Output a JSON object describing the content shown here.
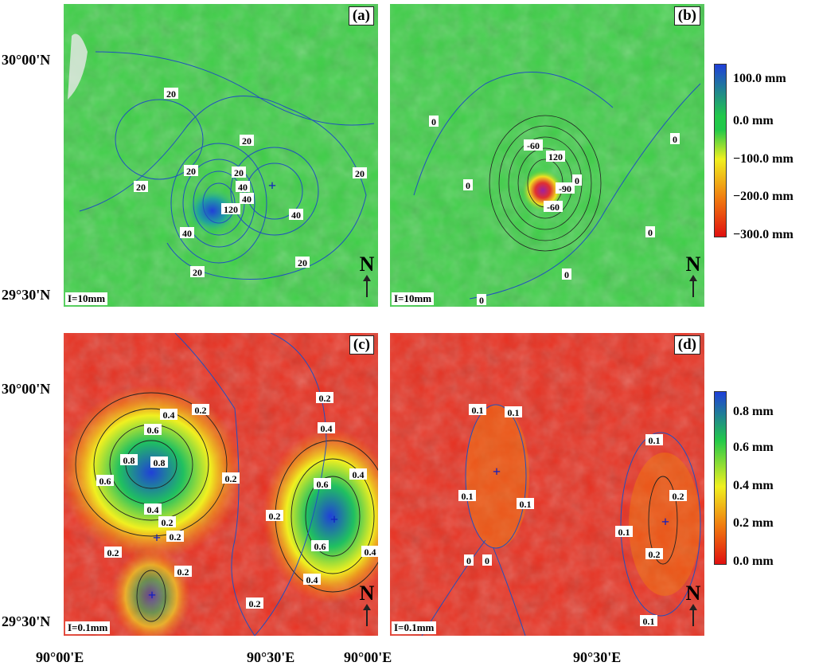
{
  "panels": [
    {
      "label": "(a)",
      "interval": "I=10mm",
      "north": "N",
      "contour_labels": [
        "20",
        "20",
        "20",
        "20",
        "20",
        "20",
        "20",
        "40",
        "40",
        "40",
        "40",
        "120",
        "20",
        "20"
      ]
    },
    {
      "label": "(b)",
      "interval": "I=10mm",
      "north": "N",
      "contour_labels": [
        "0",
        "0",
        "0",
        "0",
        "0",
        "0",
        "-60",
        "120",
        "-90",
        "-60",
        "0"
      ]
    },
    {
      "label": "(c)",
      "interval": "I=0.1mm",
      "north": "N",
      "contour_labels": [
        "0.2",
        "0.4",
        "0.6",
        "0.8",
        "0.8",
        "0.6",
        "0.2",
        "0.2",
        "0.4",
        "0.2",
        "0.2",
        "0.2",
        "0.2",
        "0.2",
        "0.4",
        "0.6",
        "0.4",
        "0.6",
        "0.4",
        "0.2",
        "0.4"
      ]
    },
    {
      "label": "(d)",
      "interval": "I=0.1mm",
      "north": "N",
      "contour_labels": [
        "0.1",
        "0.1",
        "0.1",
        "0.1",
        "0",
        "0",
        "0.1",
        "0.2",
        "0.1",
        "0.2",
        "0.1"
      ]
    }
  ],
  "axes": {
    "lat_top": "30°00'N",
    "lat_bottom": "29°30'N",
    "lon_left": "90°00'E",
    "lon_mid": "90°30'E",
    "lon_right": "90°00'E"
  },
  "colorbars": [
    {
      "labels": [
        "100.0 mm",
        "0.0 mm",
        "−100.0 mm",
        "−200.0 mm",
        "−300.0 mm"
      ],
      "colors": [
        "#1f3fd8",
        "#22c84a",
        "#f0f020",
        "#f07a10",
        "#e01010"
      ]
    },
    {
      "labels": [
        "0.8 mm",
        "0.6 mm",
        "0.4 mm",
        "0.2 mm",
        "0.0 mm"
      ],
      "colors": [
        "#1f3fd8",
        "#22c84a",
        "#f0f020",
        "#f07a10",
        "#e01010"
      ]
    }
  ],
  "marker_symbol": "+"
}
